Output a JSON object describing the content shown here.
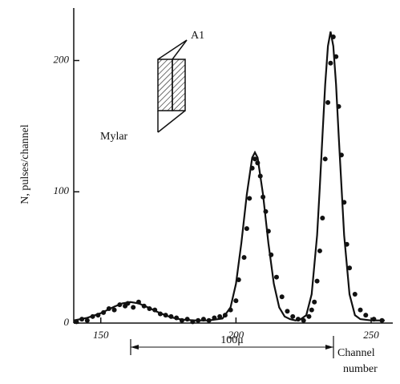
{
  "chart_data": {
    "type": "scatter",
    "y_label": "N, pulses/channel",
    "x_label": "Channel number",
    "annotations": {
      "foil_top": "A1",
      "foil_bottom": "Mylar",
      "distance": "100μ"
    },
    "xlim": [
      140,
      258
    ],
    "ylim": [
      0,
      240
    ],
    "xticks": [
      150,
      200,
      250
    ],
    "yticks": [
      0,
      100,
      200
    ],
    "color": "#111111",
    "curve": {
      "x": [
        140,
        145,
        150,
        155,
        158,
        161,
        164,
        168,
        172,
        176,
        180,
        185,
        190,
        195,
        198,
        200,
        202,
        204,
        206,
        207,
        208,
        210,
        212,
        214,
        216,
        218,
        220,
        222,
        224,
        226,
        228,
        230,
        231,
        232,
        233,
        234,
        235,
        236,
        237,
        238,
        240,
        242,
        244,
        246,
        250,
        255
      ],
      "y": [
        2,
        4,
        7.5,
        12.5,
        15,
        16,
        15,
        11.5,
        7.5,
        4.4,
        2.6,
        2,
        2,
        3.4,
        12,
        30,
        61,
        98,
        126,
        130,
        126,
        98,
        61,
        30,
        12,
        5,
        3,
        2,
        3,
        6,
        22,
        67,
        103,
        143,
        182,
        211,
        222,
        211,
        182,
        143,
        67,
        22,
        6,
        3,
        2,
        2
      ]
    },
    "points": {
      "x": [
        141,
        143,
        145,
        147,
        149,
        151,
        153,
        155,
        157,
        159,
        160,
        162,
        164,
        166,
        168,
        170,
        172,
        174,
        176,
        178,
        180,
        182,
        184,
        186,
        188,
        190,
        192,
        194,
        196,
        198,
        200,
        201,
        203,
        204,
        205,
        206,
        207,
        208,
        209,
        210,
        211,
        212,
        213,
        215,
        217,
        219,
        221,
        223,
        225,
        227,
        228,
        229,
        230,
        231,
        232,
        233,
        234,
        235,
        236,
        237,
        238,
        239,
        240,
        241,
        242,
        244,
        246,
        248,
        251,
        254
      ],
      "y": [
        1,
        3,
        2,
        5,
        6,
        8,
        11,
        10,
        14,
        13,
        15,
        12,
        16,
        13,
        11,
        10,
        7,
        6,
        5,
        4,
        2,
        3,
        1,
        2,
        3,
        2,
        4,
        5,
        6,
        10,
        17,
        33,
        50,
        72,
        95,
        118,
        125,
        122,
        112,
        96,
        85,
        70,
        52,
        35,
        20,
        9,
        5,
        3,
        2,
        5,
        10,
        16,
        32,
        55,
        80,
        125,
        168,
        198,
        218,
        203,
        165,
        128,
        92,
        60,
        42,
        22,
        10,
        6,
        3,
        2
      ]
    }
  }
}
